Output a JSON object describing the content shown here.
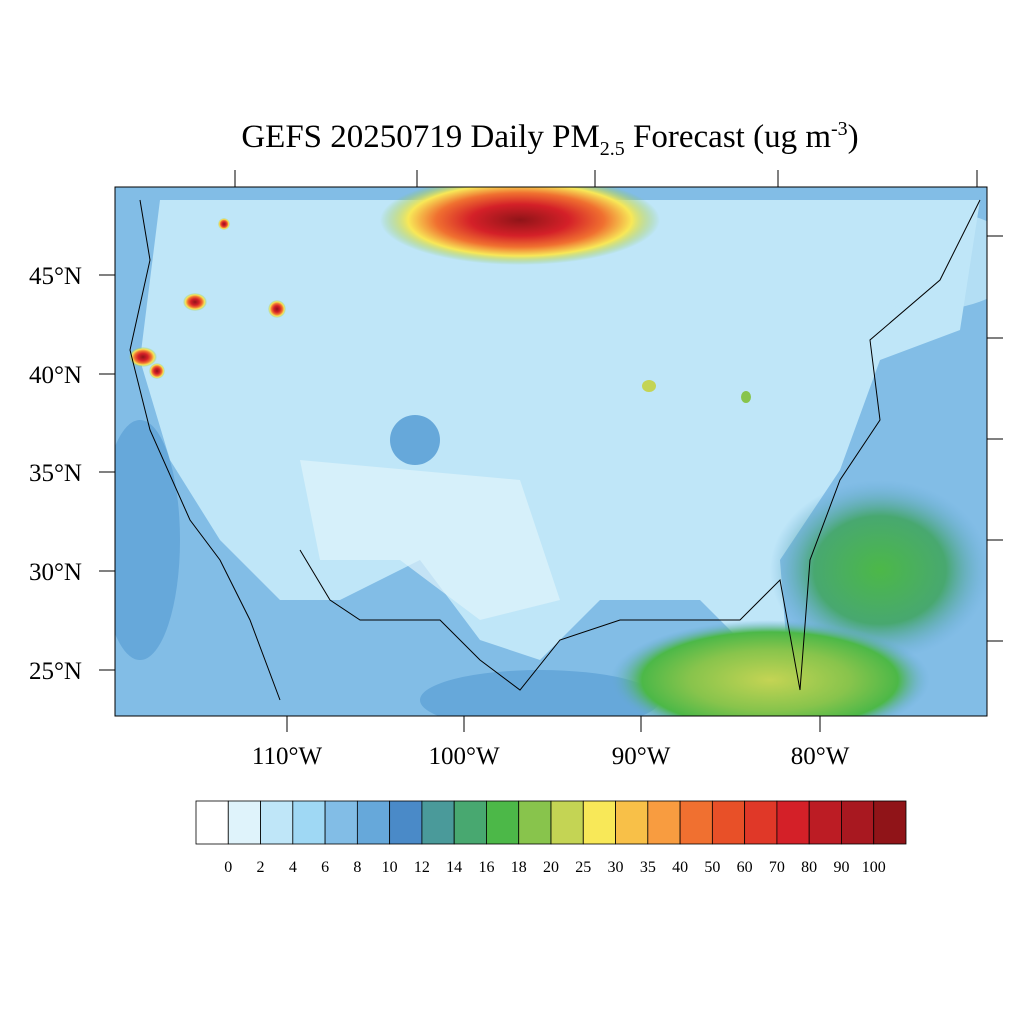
{
  "title": {
    "main": "GEFS 20250719 Daily PM",
    "subscript": "2.5",
    "after": " Forecast (ug m",
    "superscript": "-3",
    "end": ")"
  },
  "lat_labels": [
    "45°N",
    "40°N",
    "35°N",
    "30°N",
    "25°N"
  ],
  "lon_labels": [
    "110°W",
    "100°W",
    "90°W",
    "80°W"
  ],
  "colorbar": {
    "levels": [
      0,
      2,
      4,
      6,
      8,
      10,
      12,
      14,
      16,
      18,
      20,
      25,
      30,
      35,
      40,
      50,
      60,
      70,
      80,
      90,
      100
    ],
    "colors": [
      "#ffffff",
      "#dff3fb",
      "#bfe6f8",
      "#9fd8f4",
      "#82bde6",
      "#66a8da",
      "#4a8ac8",
      "#4a9a9a",
      "#48a870",
      "#4cb848",
      "#88c44c",
      "#c4d454",
      "#f8e858",
      "#f8c048",
      "#f89c40",
      "#f07030",
      "#e85028",
      "#e03828",
      "#d42028",
      "#bc1c24",
      "#a81820",
      "#901418"
    ]
  }
}
